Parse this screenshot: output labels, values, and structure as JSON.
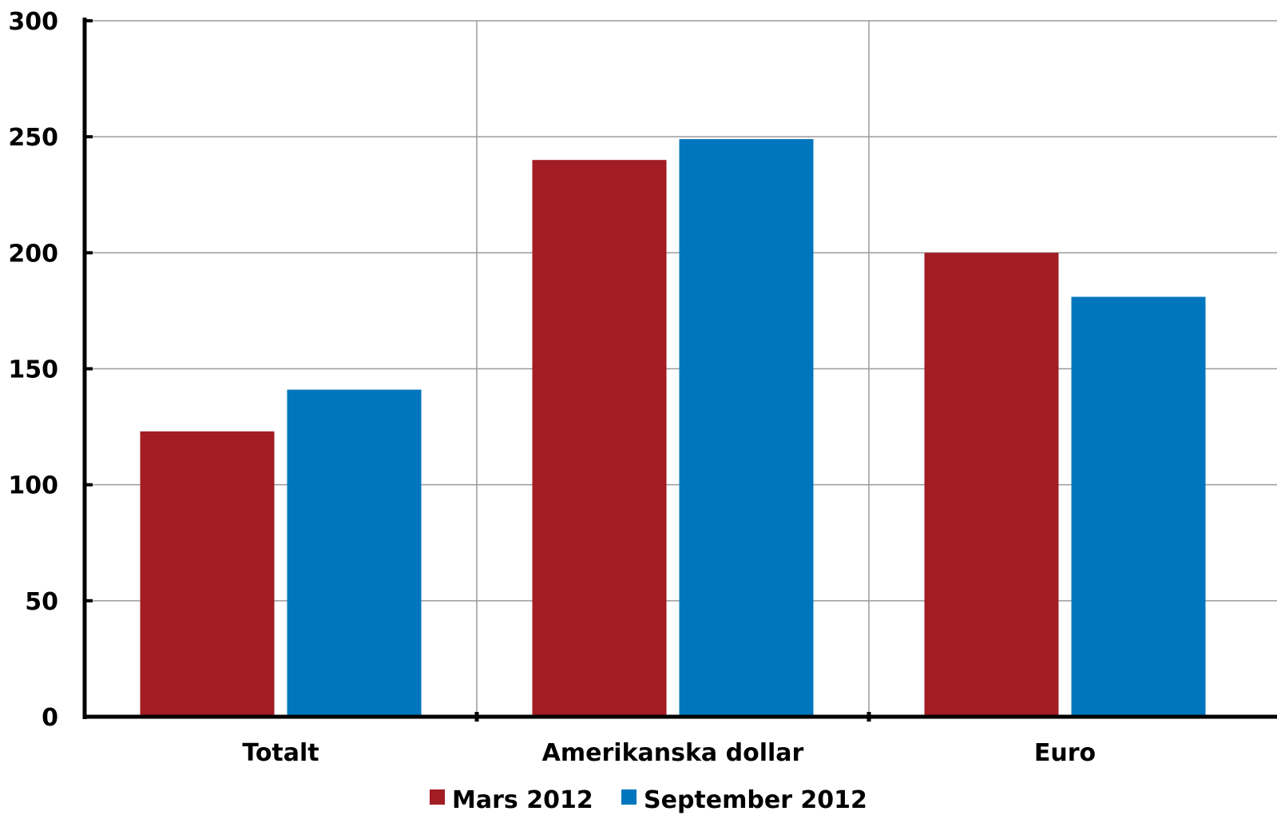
{
  "chart_data": {
    "type": "bar",
    "title": "",
    "xlabel": "",
    "ylabel": "",
    "categories": [
      "Totalt",
      "Amerikanska dollar",
      "Euro"
    ],
    "series": [
      {
        "name": "Mars 2012",
        "color": "#a21c24",
        "values": [
          123,
          240,
          200
        ]
      },
      {
        "name": "September 2012",
        "color": "#0076be",
        "values": [
          141,
          249,
          181
        ]
      }
    ],
    "ylim": [
      0,
      300
    ],
    "yticks": [
      0,
      50,
      100,
      150,
      200,
      250,
      300
    ],
    "ytick_labels": [
      "0",
      "50",
      "100",
      "150",
      "200",
      "250",
      "300"
    ],
    "grid": true,
    "legend_position": "bottom"
  }
}
